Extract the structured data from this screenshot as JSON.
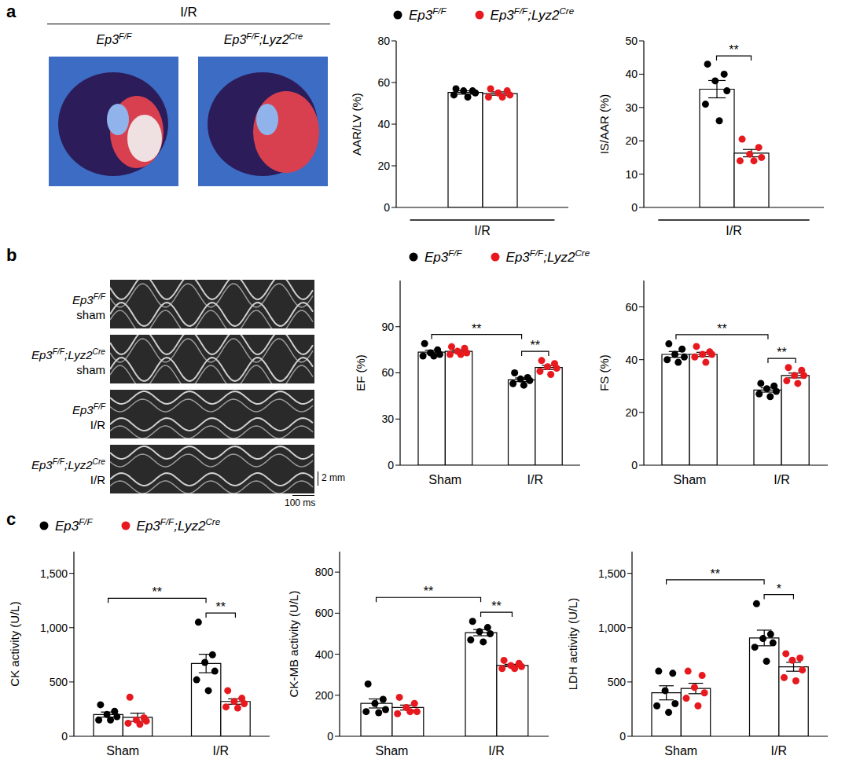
{
  "panels": [
    {
      "letter": "a",
      "image_title": "I/R",
      "image_labels": [
        "Ep3F/F",
        "Ep3F/F;Lyz2Cre"
      ]
    },
    {
      "letter": "b",
      "image_labels": [
        [
          "Ep3F/F",
          "sham"
        ],
        [
          "Ep3F/F;Lyz2Cre",
          "sham"
        ],
        [
          "Ep3F/F",
          "I/R"
        ],
        [
          "Ep3F/F;Lyz2Cre",
          "I/R"
        ]
      ],
      "scale_bars": [
        "2 mm",
        "100 ms"
      ]
    },
    {
      "letter": "c"
    }
  ],
  "chart_data": [
    {
      "type": "bar",
      "y_label": "AAR/LV (%)",
      "categories": [
        "I/R"
      ],
      "ylim": [
        0,
        80
      ],
      "yticks": [
        0,
        20,
        40,
        60,
        80
      ],
      "legend": "top",
      "series": [
        {
          "name": "Ep3F/F",
          "color": "#000000",
          "values": [
            55.2
          ],
          "errors": [
            0.8
          ],
          "points": [
            [
              57,
              56,
              56,
              55,
              54,
              53
            ]
          ]
        },
        {
          "name": "Ep3F/F;Lyz2Cre",
          "color": "#e8191e",
          "values": [
            54.7
          ],
          "errors": [
            0.8
          ],
          "points": [
            [
              57,
              56,
              55,
              54,
              53,
              53
            ]
          ]
        }
      ],
      "comparisons": []
    },
    {
      "type": "bar",
      "y_label": "IS/AAR (%)",
      "categories": [
        "I/R"
      ],
      "ylim": [
        0,
        50
      ],
      "yticks": [
        0,
        10,
        20,
        30,
        40,
        50
      ],
      "series": [
        {
          "name": "Ep3F/F",
          "color": "#000000",
          "values": [
            35.5
          ],
          "errors": [
            2.6
          ],
          "points": [
            [
              43,
              40,
              38,
              35,
              31,
              26
            ]
          ]
        },
        {
          "name": "Ep3F/F;Lyz2Cre",
          "color": "#e8191e",
          "values": [
            16.3
          ],
          "errors": [
            1.1
          ],
          "points": [
            [
              20.5,
              18,
              16,
              15,
              14,
              14
            ]
          ]
        }
      ],
      "comparisons": [
        {
          "from": [
            0,
            0
          ],
          "to": [
            0,
            1
          ],
          "label": "**"
        }
      ]
    },
    {
      "type": "bar",
      "y_label": "EF (%)",
      "categories": [
        "Sham",
        "I/R"
      ],
      "ylim": [
        0,
        120
      ],
      "yticks": [
        0,
        30,
        60,
        90
      ],
      "legend": "top",
      "series": [
        {
          "name": "Ep3F/F",
          "color": "#000000",
          "values": [
            73.5,
            55.5
          ],
          "errors": [
            1.2,
            1.2
          ],
          "points": [
            [
              79,
              75,
              73,
              72,
              71,
              71
            ],
            [
              60,
              57,
              56,
              55,
              53,
              52
            ]
          ]
        },
        {
          "name": "Ep3F/F;Lyz2Cre",
          "color": "#e8191e",
          "values": [
            74,
            63.5
          ],
          "errors": [
            0.9,
            1.3
          ],
          "points": [
            [
              77,
              76,
              74,
              73,
              72,
              72
            ],
            [
              68,
              66,
              64,
              63,
              61,
              59
            ]
          ]
        }
      ],
      "comparisons": [
        {
          "from": [
            0,
            0
          ],
          "to": [
            1,
            0
          ],
          "label": "**"
        },
        {
          "from": [
            1,
            0
          ],
          "to": [
            1,
            1
          ],
          "label": "**"
        }
      ]
    },
    {
      "type": "bar",
      "y_label": "FS (%)",
      "categories": [
        "Sham",
        "I/R"
      ],
      "ylim": [
        0,
        70
      ],
      "yticks": [
        0,
        20,
        40,
        60
      ],
      "series": [
        {
          "name": "Ep3F/F",
          "color": "#000000",
          "values": [
            42,
            28.5
          ],
          "errors": [
            1.1,
            0.8
          ],
          "points": [
            [
              46,
              44,
              42,
              41,
              40,
              39
            ],
            [
              31,
              30,
              29,
              28,
              27,
              26
            ]
          ]
        },
        {
          "name": "Ep3F/F;Lyz2Cre",
          "color": "#e8191e",
          "values": [
            42,
            34
          ],
          "errors": [
            0.8,
            0.9
          ],
          "points": [
            [
              45,
              43,
              42,
              42,
              41,
              39
            ],
            [
              37,
              36,
              34,
              34,
              32,
              31
            ]
          ]
        }
      ],
      "comparisons": [
        {
          "from": [
            0,
            0
          ],
          "to": [
            1,
            0
          ],
          "label": "**"
        },
        {
          "from": [
            1,
            0
          ],
          "to": [
            1,
            1
          ],
          "label": "**"
        }
      ]
    },
    {
      "type": "bar",
      "y_label": "CK activity (U/L)",
      "categories": [
        "Sham",
        "I/R"
      ],
      "ylim": [
        0,
        1700
      ],
      "yticks": [
        0,
        500,
        {
          "value": 1000,
          "label": "1,000"
        },
        {
          "value": 1500,
          "label": "1,500"
        }
      ],
      "legend": "top",
      "series": [
        {
          "name": "Ep3F/F",
          "color": "#000000",
          "values": [
            200,
            670
          ],
          "errors": [
            23,
            85
          ],
          "points": [
            [
              290,
              230,
              200,
              180,
              150,
              150
            ],
            [
              1050,
              750,
              680,
              600,
              520,
              420
            ]
          ]
        },
        {
          "name": "Ep3F/F;Lyz2Cre",
          "color": "#e8191e",
          "values": [
            175,
            320
          ],
          "errors": [
            38,
            25
          ],
          "points": [
            [
              360,
              170,
              150,
              140,
              120,
              110
            ],
            [
              420,
              350,
              320,
              300,
              270,
              260
            ]
          ]
        }
      ],
      "comparisons": [
        {
          "from": [
            0,
            0
          ],
          "to": [
            1,
            0
          ],
          "label": "**"
        },
        {
          "from": [
            1,
            0
          ],
          "to": [
            1,
            1
          ],
          "label": "**"
        }
      ]
    },
    {
      "type": "bar",
      "y_label": "CK-MB activity (U/L)",
      "categories": [
        "Sham",
        "I/R"
      ],
      "ylim": [
        0,
        900
      ],
      "yticks": [
        0,
        200,
        400,
        600,
        800
      ],
      "series": [
        {
          "name": "Ep3F/F",
          "color": "#000000",
          "values": [
            160,
            505
          ],
          "errors": [
            22,
            15
          ],
          "points": [
            [
              255,
              180,
              160,
              130,
              120,
              115
            ],
            [
              560,
              530,
              510,
              500,
              470,
              460
            ]
          ]
        },
        {
          "name": "Ep3F/F;Lyz2Cre",
          "color": "#e8191e",
          "values": [
            140,
            345
          ],
          "errors": [
            12,
            6
          ],
          "points": [
            [
              190,
              160,
              140,
              120,
              110,
              120
            ],
            [
              370,
              355,
              345,
              340,
              330,
              330
            ]
          ]
        }
      ],
      "comparisons": [
        {
          "from": [
            0,
            0
          ],
          "to": [
            1,
            0
          ],
          "label": "**"
        },
        {
          "from": [
            1,
            0
          ],
          "to": [
            1,
            1
          ],
          "label": "**"
        }
      ]
    },
    {
      "type": "bar",
      "y_label": "LDH activity (U/L)",
      "categories": [
        "Sham",
        "I/R"
      ],
      "ylim": [
        0,
        1700
      ],
      "yticks": [
        0,
        500,
        {
          "value": 1000,
          "label": "1,000"
        },
        {
          "value": 1500,
          "label": "1,500"
        }
      ],
      "series": [
        {
          "name": "Ep3F/F",
          "color": "#000000",
          "values": [
            400,
            905
          ],
          "errors": [
            65,
            72
          ],
          "points": [
            [
              600,
              580,
              420,
              300,
              280,
              220
            ],
            [
              1220,
              940,
              900,
              860,
              820,
              690
            ]
          ]
        },
        {
          "name": "Ep3F/F;Lyz2Cre",
          "color": "#e8191e",
          "values": [
            440,
            640
          ],
          "errors": [
            48,
            41
          ],
          "points": [
            [
              600,
              560,
              450,
              400,
              350,
              280
            ],
            [
              760,
              720,
              700,
              610,
              540,
              510
            ]
          ]
        }
      ],
      "comparisons": [
        {
          "from": [
            0,
            0
          ],
          "to": [
            1,
            0
          ],
          "label": "**"
        },
        {
          "from": [
            1,
            0
          ],
          "to": [
            1,
            1
          ],
          "label": "*"
        }
      ]
    }
  ]
}
